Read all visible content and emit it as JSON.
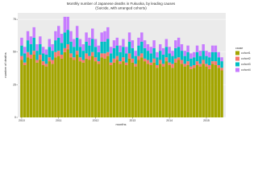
{
  "chart_data": {
    "type": "stacked_bar",
    "title": "Monthly number of Japanese deaths in Fukuoka, by leading causes",
    "subtitle": "(Suicide, with arranged cohorts)",
    "x_label": "months",
    "y_label": "number of deaths",
    "legend_title": "cause",
    "categories": [
      "2010",
      null,
      null,
      null,
      null,
      null,
      null,
      null,
      null,
      null,
      null,
      null,
      "2011",
      null,
      null,
      null,
      null,
      null,
      null,
      null,
      null,
      null,
      null,
      null,
      "2012",
      null,
      null,
      null,
      null,
      null,
      null,
      null,
      null,
      null,
      null,
      null,
      "2013",
      null,
      null,
      null,
      null,
      null,
      null,
      null,
      null,
      null,
      null,
      null,
      "2014",
      null,
      null,
      null,
      null,
      null,
      null,
      null,
      null,
      null,
      null,
      null,
      "2015",
      null,
      null,
      null,
      null,
      null
    ],
    "series": [
      {
        "name": "cohort1",
        "color": "#a3a500",
        "values": [
          44,
          40,
          46,
          45,
          48,
          42,
          44,
          40,
          39,
          43,
          41,
          46,
          47,
          45,
          50,
          52,
          46,
          44,
          48,
          43,
          42,
          45,
          44,
          47,
          43,
          41,
          46,
          45,
          47,
          40,
          42,
          44,
          41,
          43,
          40,
          45,
          42,
          39,
          44,
          46,
          43,
          41,
          40,
          42,
          38,
          41,
          39,
          43,
          40,
          38,
          42,
          44,
          41,
          39,
          40,
          37,
          38,
          40,
          39,
          41,
          39,
          37,
          41,
          40,
          38,
          36
        ]
      },
      {
        "name": "cohort2",
        "color": "#f8766d",
        "values": [
          3,
          2,
          4,
          3,
          3,
          2,
          4,
          3,
          2,
          3,
          3,
          4,
          4,
          3,
          3,
          4,
          3,
          2,
          3,
          3,
          2,
          4,
          3,
          3,
          3,
          2,
          3,
          4,
          3,
          2,
          3,
          3,
          2,
          3,
          2,
          4,
          3,
          2,
          3,
          3,
          2,
          3,
          2,
          3,
          2,
          3,
          2,
          3,
          2,
          3,
          3,
          2,
          3,
          2,
          3,
          2,
          2,
          3,
          2,
          3,
          2,
          3,
          2,
          3,
          2,
          2
        ]
      },
      {
        "name": "cohort3",
        "color": "#00bfc4",
        "values": [
          8,
          7,
          9,
          8,
          10,
          7,
          8,
          6,
          7,
          8,
          7,
          9,
          10,
          9,
          12,
          11,
          9,
          8,
          10,
          8,
          7,
          9,
          8,
          10,
          8,
          7,
          9,
          9,
          10,
          7,
          8,
          8,
          7,
          8,
          7,
          9,
          8,
          6,
          8,
          9,
          8,
          7,
          7,
          8,
          6,
          7,
          7,
          8,
          7,
          6,
          8,
          8,
          7,
          6,
          7,
          6,
          6,
          7,
          6,
          7,
          6,
          6,
          7,
          7,
          6,
          5
        ]
      },
      {
        "name": "cohort4",
        "color": "#c77cff",
        "values": [
          6,
          5,
          7,
          6,
          8,
          5,
          6,
          5,
          4,
          6,
          5,
          7,
          9,
          7,
          12,
          10,
          8,
          6,
          9,
          6,
          5,
          7,
          6,
          8,
          6,
          5,
          7,
          8,
          9,
          5,
          6,
          6,
          5,
          6,
          5,
          7,
          6,
          4,
          6,
          7,
          6,
          5,
          5,
          6,
          4,
          5,
          5,
          6,
          5,
          4,
          6,
          7,
          5,
          4,
          5,
          4,
          4,
          5,
          4,
          5,
          4,
          4,
          5,
          5,
          4,
          3
        ]
      }
    ],
    "ylim": [
      0,
      80
    ],
    "yticks": [
      0,
      25,
      50,
      75
    ],
    "grid": true,
    "legend_position": "right"
  }
}
